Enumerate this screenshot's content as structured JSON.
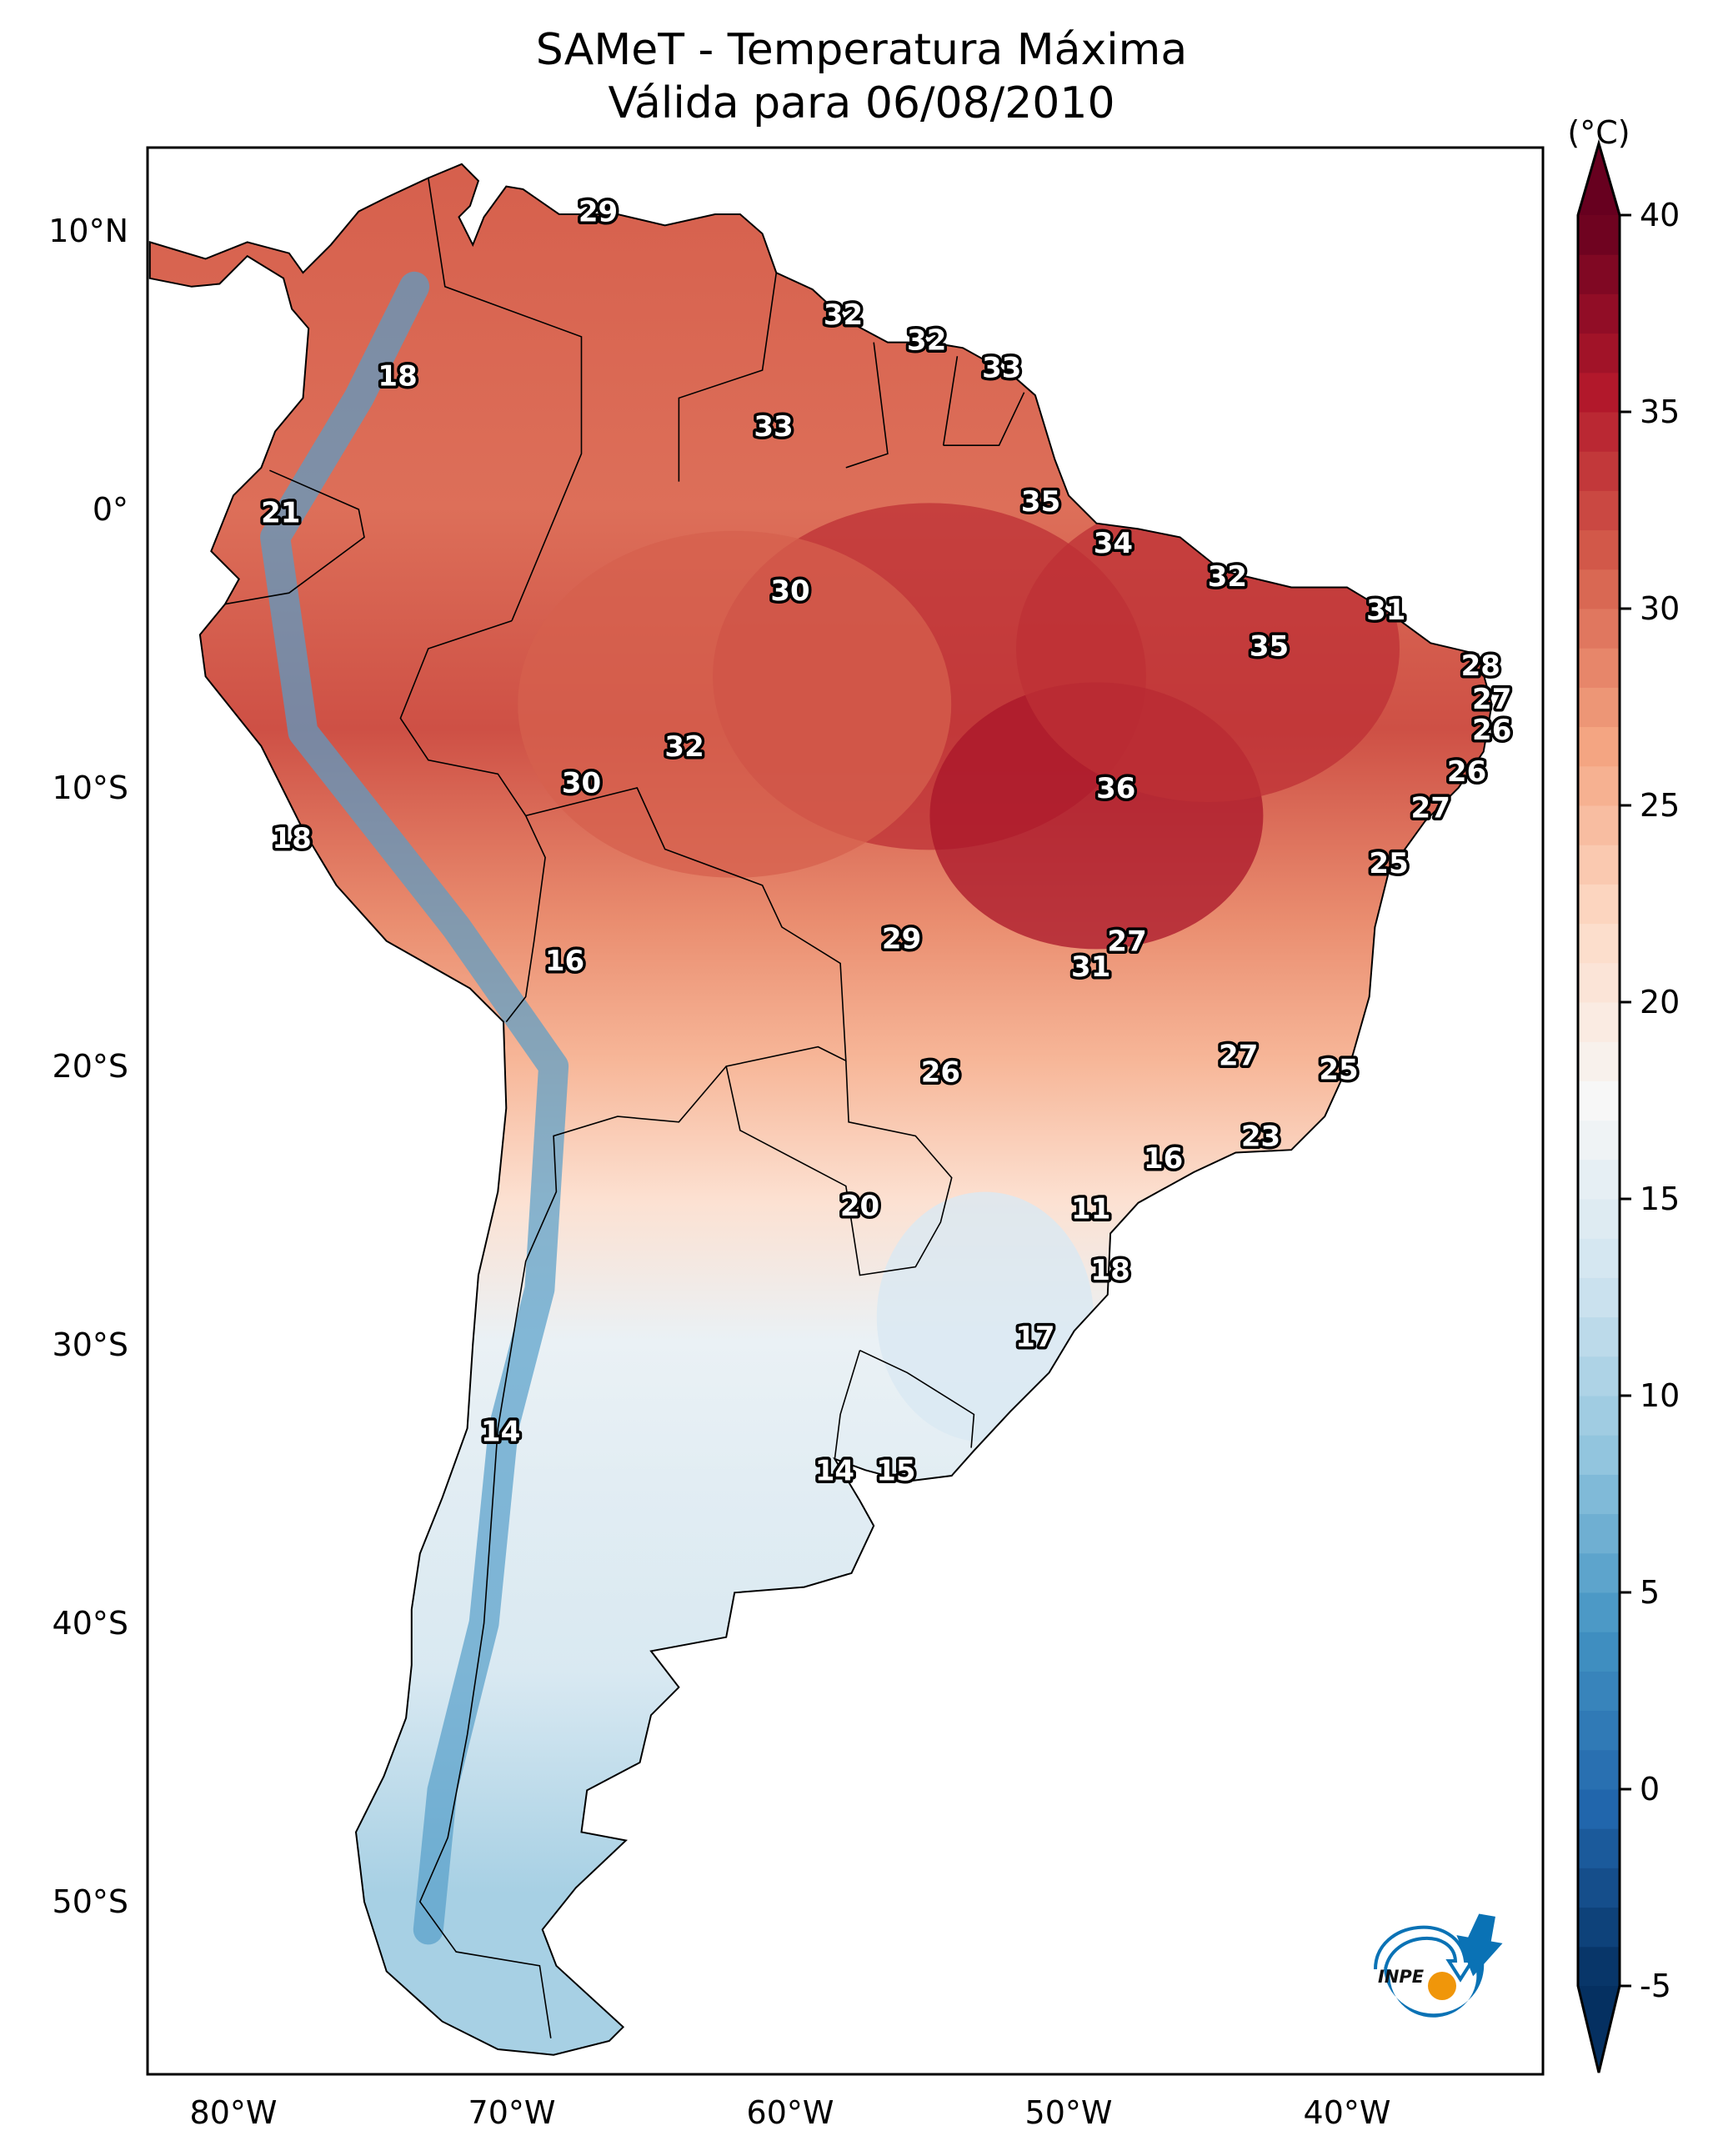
{
  "chart_data": {
    "type": "heatmap",
    "title": "SAMeT - Temperatura Máxima",
    "subtitle": "Válida para 06/08/2010",
    "xlabel": "",
    "ylabel": "",
    "xlim": [
      -83,
      -32.5
    ],
    "ylim": [
      -56.5,
      13
    ],
    "x_ticks": [
      {
        "value": -80,
        "label": "80°W"
      },
      {
        "value": -70,
        "label": "70°W"
      },
      {
        "value": -60,
        "label": "60°W"
      },
      {
        "value": -50,
        "label": "50°W"
      },
      {
        "value": -40,
        "label": "40°W"
      }
    ],
    "y_ticks": [
      {
        "value": 10,
        "label": "10°N"
      },
      {
        "value": 0,
        "label": "0°"
      },
      {
        "value": -10,
        "label": "10°S"
      },
      {
        "value": -20,
        "label": "20°S"
      },
      {
        "value": -30,
        "label": "30°S"
      },
      {
        "value": -40,
        "label": "40°S"
      },
      {
        "value": -50,
        "label": "50°S"
      }
    ],
    "grid": false,
    "colorbar": {
      "label": "(°C)",
      "colormap": "RdBu_r",
      "range": [
        -5,
        40
      ],
      "extend": "both",
      "placement": "right",
      "ticks": [
        40,
        35,
        30,
        25,
        20,
        15,
        10,
        5,
        0,
        -5
      ],
      "tick_labels": [
        "40",
        "35",
        "30",
        "25",
        "20",
        "15",
        "10",
        "5",
        "0",
        "-5"
      ]
    },
    "station_values": [
      {
        "lon": -66.9,
        "lat": 10.7,
        "value": 29
      },
      {
        "lon": -74.1,
        "lat": 4.8,
        "value": 18
      },
      {
        "lon": -58.1,
        "lat": 7.0,
        "value": 32
      },
      {
        "lon": -55.1,
        "lat": 6.1,
        "value": 32
      },
      {
        "lon": -52.4,
        "lat": 5.1,
        "value": 33
      },
      {
        "lon": -60.6,
        "lat": 3.0,
        "value": 33
      },
      {
        "lon": -78.3,
        "lat": -0.1,
        "value": 21
      },
      {
        "lon": -51.0,
        "lat": 0.3,
        "value": 35
      },
      {
        "lon": -48.4,
        "lat": -1.2,
        "value": 34
      },
      {
        "lon": -60.0,
        "lat": -2.9,
        "value": 30
      },
      {
        "lon": -44.3,
        "lat": -2.4,
        "value": 32
      },
      {
        "lon": -38.6,
        "lat": -3.6,
        "value": 31
      },
      {
        "lon": -42.8,
        "lat": -4.9,
        "value": 35
      },
      {
        "lon": -35.2,
        "lat": -5.6,
        "value": 28
      },
      {
        "lon": -34.8,
        "lat": -6.8,
        "value": 27
      },
      {
        "lon": -34.8,
        "lat": -7.9,
        "value": 26
      },
      {
        "lon": -63.8,
        "lat": -8.5,
        "value": 32
      },
      {
        "lon": -67.5,
        "lat": -9.8,
        "value": 30
      },
      {
        "lon": -48.3,
        "lat": -10.0,
        "value": 36
      },
      {
        "lon": -35.7,
        "lat": -9.4,
        "value": 26
      },
      {
        "lon": -37.0,
        "lat": -10.7,
        "value": 27
      },
      {
        "lon": -77.9,
        "lat": -11.8,
        "value": 18
      },
      {
        "lon": -38.5,
        "lat": -12.7,
        "value": 25
      },
      {
        "lon": -68.1,
        "lat": -16.2,
        "value": 16
      },
      {
        "lon": -56.0,
        "lat": -15.4,
        "value": 29
      },
      {
        "lon": -47.9,
        "lat": -15.5,
        "value": 27
      },
      {
        "lon": -49.2,
        "lat": -16.4,
        "value": 31
      },
      {
        "lon": -54.6,
        "lat": -20.2,
        "value": 26
      },
      {
        "lon": -43.9,
        "lat": -19.6,
        "value": 27
      },
      {
        "lon": -40.3,
        "lat": -20.1,
        "value": 25
      },
      {
        "lon": -43.1,
        "lat": -22.5,
        "value": 23
      },
      {
        "lon": -46.6,
        "lat": -23.3,
        "value": 16
      },
      {
        "lon": -57.5,
        "lat": -25.0,
        "value": 20
      },
      {
        "lon": -49.2,
        "lat": -25.1,
        "value": 11
      },
      {
        "lon": -48.5,
        "lat": -27.3,
        "value": 18
      },
      {
        "lon": -51.2,
        "lat": -29.7,
        "value": 17
      },
      {
        "lon": -70.4,
        "lat": -33.1,
        "value": 14
      },
      {
        "lon": -58.4,
        "lat": -34.5,
        "value": 14
      },
      {
        "lon": -56.2,
        "lat": -34.5,
        "value": 15
      }
    ]
  },
  "colors": {
    "cmap_stops": [
      "#053061",
      "#2166ac",
      "#4393c3",
      "#92c5de",
      "#d1e5f0",
      "#f7f7f7",
      "#fddbc7",
      "#f4a582",
      "#d6604d",
      "#b2182b",
      "#67001f"
    ]
  },
  "logo": {
    "text": "INPE",
    "primary_color": "#0a72b5",
    "accent_color": "#f0960a"
  }
}
